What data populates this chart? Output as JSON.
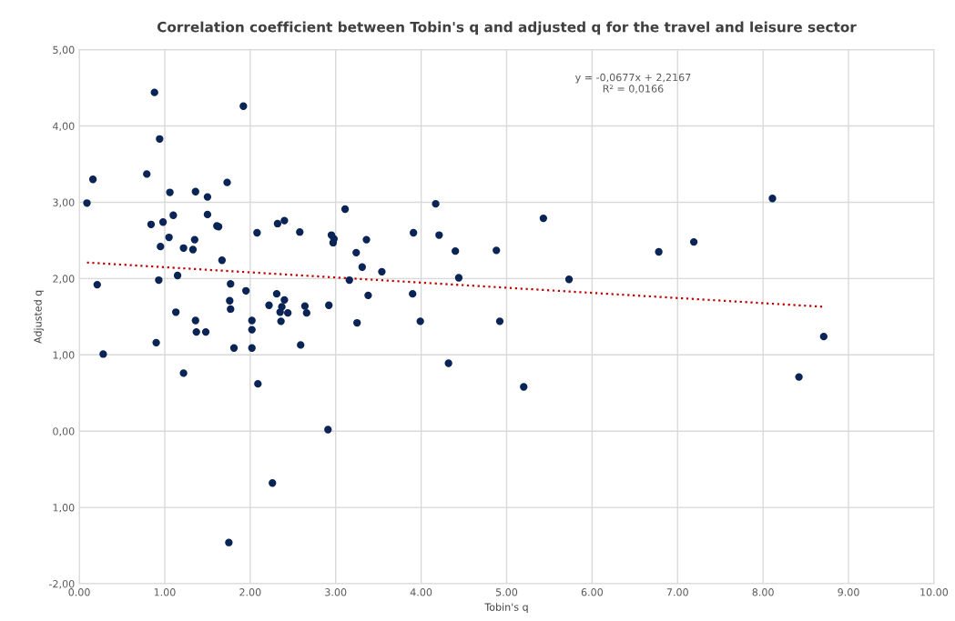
{
  "chart_data": {
    "type": "scatter",
    "title": "Correlation coefficient between Tobin's q and adjusted q for the travel and leisure sector",
    "xlabel": "Tobin's q",
    "ylabel": "Adjusted q",
    "series": [
      {
        "color": "#0b2456",
        "marker": "circle",
        "x": [
          0.88,
          1.92,
          0.94,
          0.79,
          0.16,
          1.73,
          1.06,
          1.36,
          1.5,
          0.09,
          3.11,
          1.1,
          1.5,
          0.84,
          0.98,
          1.61,
          1.63,
          2.32,
          2.4,
          1.05,
          1.35,
          2.08,
          2.58,
          2.95,
          2.98,
          2.97,
          0.95,
          1.22,
          1.33,
          3.24,
          1.67,
          3.31,
          1.15,
          0.21,
          0.93,
          3.16,
          1.77,
          1.95,
          2.31,
          2.4,
          1.76,
          1.77,
          1.13,
          2.22,
          2.37,
          2.35,
          2.44,
          2.64,
          2.66,
          2.92,
          2.36,
          2.02,
          2.02,
          1.36,
          1.37,
          1.48,
          3.25,
          0.9,
          2.59,
          1.81,
          2.02,
          0.28,
          1.22,
          2.09,
          2.91,
          2.26,
          1.75,
          3.36,
          4.17,
          3.91,
          4.21,
          4.4,
          4.88,
          3.54,
          4.44,
          3.38,
          3.9,
          3.99,
          4.92,
          4.32,
          5.2,
          5.43,
          5.73,
          6.78,
          7.19,
          8.11,
          8.71,
          8.42
        ],
        "values": [
          4.44,
          4.26,
          3.83,
          3.37,
          3.3,
          3.26,
          3.13,
          3.14,
          3.07,
          2.99,
          2.91,
          2.83,
          2.84,
          2.71,
          2.74,
          2.69,
          2.68,
          2.72,
          2.76,
          2.54,
          2.51,
          2.6,
          2.61,
          2.57,
          2.52,
          2.47,
          2.42,
          2.4,
          2.38,
          2.34,
          2.24,
          2.15,
          2.04,
          1.92,
          1.98,
          1.98,
          1.93,
          1.84,
          1.8,
          1.72,
          1.71,
          1.6,
          1.56,
          1.65,
          1.63,
          1.56,
          1.55,
          1.64,
          1.55,
          1.65,
          1.44,
          1.45,
          1.33,
          1.45,
          1.3,
          1.3,
          1.42,
          1.16,
          1.13,
          1.09,
          1.09,
          1.01,
          0.76,
          0.62,
          0.02,
          -0.68,
          -1.46,
          2.51,
          2.98,
          2.6,
          2.57,
          2.36,
          2.37,
          2.09,
          2.01,
          1.78,
          1.8,
          1.44,
          1.44,
          0.89,
          0.58,
          2.79,
          1.99,
          2.35,
          2.48,
          3.05,
          1.24,
          0.71
        ]
      },
      {
        "type": "line",
        "color": "#c00000",
        "line_style": "dotted",
        "x": [
          0.09,
          8.71
        ],
        "values": [
          2.21,
          1.63
        ]
      }
    ],
    "annotations": [
      "y = -0,0677x + 2,2167\nR² = 0,0166"
    ],
    "xlim": [
      0,
      10
    ],
    "ylim": [
      -2,
      5
    ],
    "xticks": [
      {
        "value": 0,
        "label": "0.00"
      },
      {
        "value": 1,
        "label": "1.00"
      },
      {
        "value": 2,
        "label": "2.00"
      },
      {
        "value": 3,
        "label": "3.00"
      },
      {
        "value": 4,
        "label": "4.00"
      },
      {
        "value": 5,
        "label": "5.00"
      },
      {
        "value": 6,
        "label": "6.00"
      },
      {
        "value": 7,
        "label": "7.00"
      },
      {
        "value": 8,
        "label": "8.00"
      },
      {
        "value": 9,
        "label": "9.00"
      },
      {
        "value": 10,
        "label": "10.00"
      }
    ],
    "yticks": [
      {
        "value": -2,
        "label": "-2,00"
      },
      {
        "value": -1,
        "label": "1,00"
      },
      {
        "value": 0,
        "label": "0,00"
      },
      {
        "value": 1,
        "label": "1,00"
      },
      {
        "value": 2,
        "label": "2,00"
      },
      {
        "value": 3,
        "label": "3,00"
      },
      {
        "value": 4,
        "label": "4,00"
      },
      {
        "value": 5,
        "label": "5,00"
      }
    ],
    "grid": true,
    "legend": false
  }
}
